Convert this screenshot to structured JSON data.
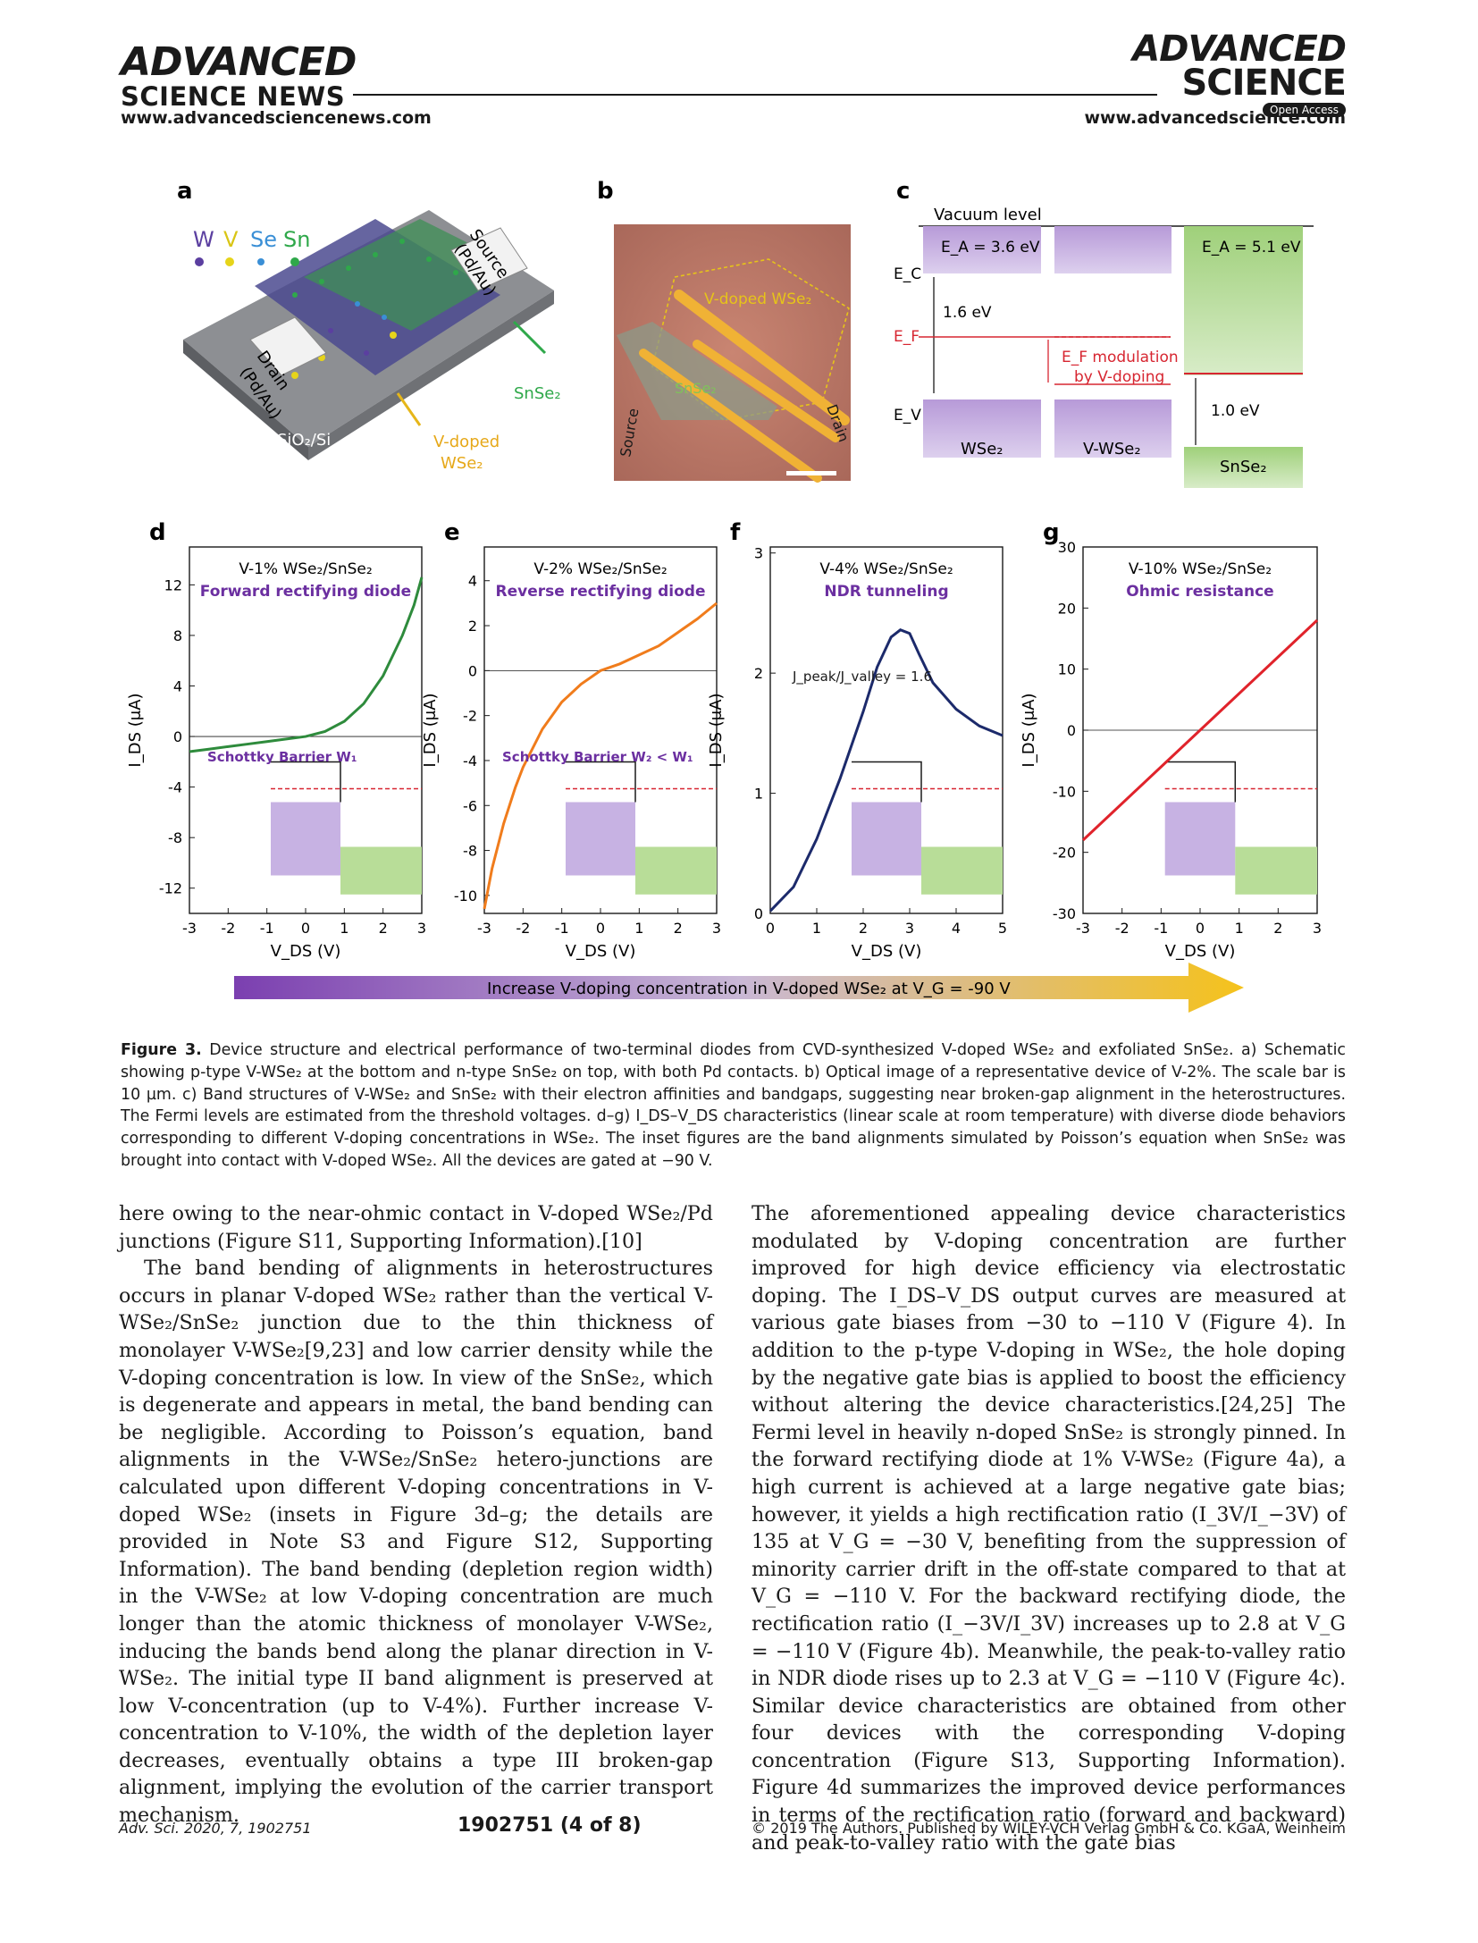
{
  "header": {
    "publisher_line1": "ADVANCED",
    "publisher_line2": "SCIENCE NEWS",
    "journal_line1": "ADVANCED",
    "journal_line2": "SCIENCE",
    "open_access": "Open Access",
    "url_left": "www.advancedsciencenews.com",
    "url_right": "www.advancedscience.com"
  },
  "figure": {
    "panel_a": {
      "label": "a",
      "legend": [
        "W",
        "V",
        "Se",
        "Sn"
      ],
      "legend_colors": [
        "#5b3fa0",
        "#e6d41a",
        "#3a8fd6",
        "#2fa84a"
      ],
      "source": "Source",
      "source_sub": "(Pd/Au)",
      "drain": "Drain",
      "drain_sub": "(Pd/Au)",
      "snse2": "SnSe₂",
      "substrate": "SiO₂/Si",
      "vdoped1": "V-doped",
      "vdoped2": "WSe₂"
    },
    "panel_b": {
      "label": "b",
      "vdoped": "V-doped WSe₂",
      "snse2": "SnSe₂",
      "source": "Source",
      "drain": "Drain"
    },
    "panel_c": {
      "label": "c",
      "vacuum": "Vacuum level",
      "ea_wse2": "E_A = 3.6 eV",
      "ea_snse2": "E_A = 5.1 eV",
      "ec": "E_C",
      "ef": "E_F",
      "ev": "E_V",
      "gap1": "1.6 eV",
      "gap2": "1.0 eV",
      "modulation1": "E_F modulation",
      "modulation2": "by V-doping",
      "wse2": "WSe₂",
      "vwse2": "V-WSe₂",
      "snse2": "SnSe₂"
    },
    "graphs": [
      {
        "label": "d",
        "title": "V-1% WSe₂/SnSe₂",
        "subtitle": "Forward rectifying diode",
        "ylabel": "I_DS (μA)",
        "xlabel": "V_DS (V)",
        "annotation": "Schottky Barrier W₁",
        "color": "#2e8b3c"
      },
      {
        "label": "e",
        "title": "V-2% WSe₂/SnSe₂",
        "subtitle": "Reverse rectifying diode",
        "ylabel": "I_DS (μA)",
        "xlabel": "V_DS (V)",
        "annotation": "Schottky Barrier W₂ < W₁",
        "color": "#f07c1c"
      },
      {
        "label": "f",
        "title": "V-4% WSe₂/SnSe₂",
        "subtitle": "NDR tunneling",
        "ylabel": "I_DS (μA)",
        "xlabel": "V_DS (V)",
        "annotation": "J_peak/J_valley = 1.6",
        "color": "#1c2a6b"
      },
      {
        "label": "g",
        "title": "V-10% WSe₂/SnSe₂",
        "subtitle": "Ohmic resistance",
        "ylabel": "I_DS (μA)",
        "xlabel": "V_DS (V)",
        "annotation": "",
        "color": "#e0232b"
      }
    ],
    "arrow_text": "Increase V-doping concentration in V-doped WSe₂ at V_G = -90 V"
  },
  "chart_data": [
    {
      "type": "line",
      "title": "V-1% WSe₂/SnSe₂",
      "subtitle": "Forward rectifying diode",
      "xlabel": "V_DS (V)",
      "ylabel": "I_DS (μA)",
      "xlim": [
        -3,
        3
      ],
      "ylim": [
        -14,
        15
      ],
      "yticks": [
        -12,
        -8,
        -4,
        0,
        4,
        8,
        12
      ],
      "xticks": [
        -3,
        -2,
        -1,
        0,
        1,
        2,
        3
      ],
      "x": [
        -3,
        -2.5,
        -2,
        -1.5,
        -1,
        -0.5,
        0,
        0.5,
        1,
        1.5,
        2,
        2.5,
        2.8,
        3
      ],
      "y": [
        -1.2,
        -1.0,
        -0.8,
        -0.6,
        -0.4,
        -0.2,
        0,
        0.4,
        1.2,
        2.6,
        4.8,
        8.0,
        10.4,
        12.6
      ]
    },
    {
      "type": "line",
      "title": "V-2% WSe₂/SnSe₂",
      "subtitle": "Reverse rectifying diode",
      "xlabel": "V_DS (V)",
      "ylabel": "I_DS (μA)",
      "xlim": [
        -3,
        3
      ],
      "ylim": [
        -10.8,
        5.5
      ],
      "yticks": [
        -10,
        -8,
        -6,
        -4,
        -2,
        0,
        2,
        4
      ],
      "xticks": [
        -3,
        -2,
        -1,
        0,
        1,
        2,
        3
      ],
      "x": [
        -3,
        -2.8,
        -2.5,
        -2.2,
        -2,
        -1.5,
        -1,
        -0.5,
        0,
        0.5,
        1,
        1.5,
        2,
        2.5,
        3
      ],
      "y": [
        -10.6,
        -8.8,
        -6.8,
        -5.2,
        -4.3,
        -2.6,
        -1.4,
        -0.6,
        0,
        0.3,
        0.7,
        1.1,
        1.7,
        2.3,
        3.0
      ]
    },
    {
      "type": "line",
      "title": "V-4% WSe₂/SnSe₂",
      "subtitle": "NDR tunneling",
      "xlabel": "V_DS (V)",
      "ylabel": "I_DS (μA)",
      "xlim": [
        0,
        5
      ],
      "ylim": [
        0,
        3.05
      ],
      "yticks": [
        0,
        1,
        2,
        3
      ],
      "xticks": [
        0,
        1,
        2,
        3,
        4,
        5
      ],
      "x": [
        0,
        0.5,
        1,
        1.5,
        2,
        2.3,
        2.6,
        2.8,
        3.0,
        3.2,
        3.5,
        4.0,
        4.5,
        5.0
      ],
      "y": [
        0.02,
        0.22,
        0.62,
        1.12,
        1.68,
        2.05,
        2.3,
        2.36,
        2.33,
        2.16,
        1.92,
        1.7,
        1.56,
        1.48
      ]
    },
    {
      "type": "line",
      "title": "V-10% WSe₂/SnSe₂",
      "subtitle": "Ohmic resistance",
      "xlabel": "V_DS (V)",
      "ylabel": "I_DS (μA)",
      "xlim": [
        -3,
        3
      ],
      "ylim": [
        -30,
        30
      ],
      "yticks": [
        -30,
        -20,
        -10,
        0,
        10,
        20,
        30
      ],
      "xticks": [
        -3,
        -2,
        -1,
        0,
        1,
        2,
        3
      ],
      "x": [
        -3,
        -2,
        -1,
        0,
        1,
        2,
        3
      ],
      "y": [
        -18.0,
        -12.0,
        -6.0,
        0,
        6.0,
        12.0,
        18.0
      ]
    }
  ],
  "caption": {
    "label": "Figure 3.",
    "text": "Device structure and electrical performance of two-terminal diodes from CVD-synthesized V-doped WSe₂ and exfoliated SnSe₂. a) Schematic showing p-type V-WSe₂ at the bottom and n-type SnSe₂ on top, with both Pd contacts. b) Optical image of a representative device of V-2%. The scale bar is 10 µm. c) Band structures of V-WSe₂ and SnSe₂ with their electron affinities and bandgaps, suggesting near broken-gap alignment in the heterostructures. The Fermi levels are estimated from the threshold voltages. d–g) I_DS–V_DS characteristics (linear scale at room temperature) with diverse diode behaviors corresponding to different V-doping concentrations in WSe₂. The inset figures are the band alignments simulated by Poisson’s equation when SnSe₂ was brought into contact with V-doped WSe₂. All the devices are gated at −90 V."
  },
  "body": {
    "left": [
      "here owing to the near-ohmic contact in V-doped WSe₂/Pd junctions (Figure S11, Supporting Information).[10]",
      "The band bending of alignments in heterostructures occurs in planar V-doped WSe₂ rather than the vertical V-WSe₂/SnSe₂ junction due to the thin thickness of monolayer V-WSe₂[9,23] and low carrier density while the V-doping concentration is low. In view of the SnSe₂, which is degenerate and appears in metal, the band bending can be negligible. According to Poisson’s equation, band alignments in the V-WSe₂/SnSe₂ hetero-junctions are calculated upon different V-doping concentrations in V-doped WSe₂ (insets in Figure 3d–g; the details are provided in Note S3 and Figure S12, Supporting Information). The band bending (depletion region width) in the V-WSe₂ at low V-doping concentration are much longer than the atomic thickness of monolayer V-WSe₂, inducing the bands bend along the planar direction in V-WSe₂. The initial type II band alignment is preserved at low V-concentration (up to V-4%). Further increase V-concentration to V-10%, the width of the depletion layer decreases, eventually obtains a type III broken-gap alignment, implying the evolution of the carrier transport mechanism."
    ],
    "right": [
      "The aforementioned appealing device characteristics modulated by V-doping concentration are further improved for high device efficiency via electrostatic doping. The I_DS–V_DS output curves are measured at various gate biases from −30 to −110 V (Figure 4). In addition to the p-type V-doping in WSe₂, the hole doping by the negative gate bias is applied to boost the efficiency without altering the device characteristics.[24,25] The Fermi level in heavily n-doped SnSe₂ is strongly pinned. In the forward rectifying diode at 1% V-WSe₂ (Figure 4a), a high current is achieved at a large negative gate bias; however, it yields a high rectification ratio (I_3V/I_−3V) of 135 at V_G = −30 V, benefiting from the suppression of minority carrier drift in the off-state compared to that at V_G = −110 V. For the backward rectifying diode, the rectification ratio (I_−3V/I_3V) increases up to 2.8 at V_G = −110 V (Figure 4b). Meanwhile, the peak-to-valley ratio in NDR diode rises up to 2.3 at V_G = −110 V (Figure 4c). Similar device characteristics are obtained from other four devices with the corresponding V-doping concentration (Figure S13, Supporting Information). Figure 4d summarizes the improved device performances in terms of the rectification ratio (forward and backward) and peak-to-valley ratio with the gate bias"
    ]
  },
  "footer": {
    "left": "Adv. Sci. 2020, 7, 1902751",
    "center": "1902751  (4 of 8)",
    "right": "© 2019 The Authors. Published by WILEY-VCH Verlag GmbH & Co. KGaA, Weinheim"
  }
}
